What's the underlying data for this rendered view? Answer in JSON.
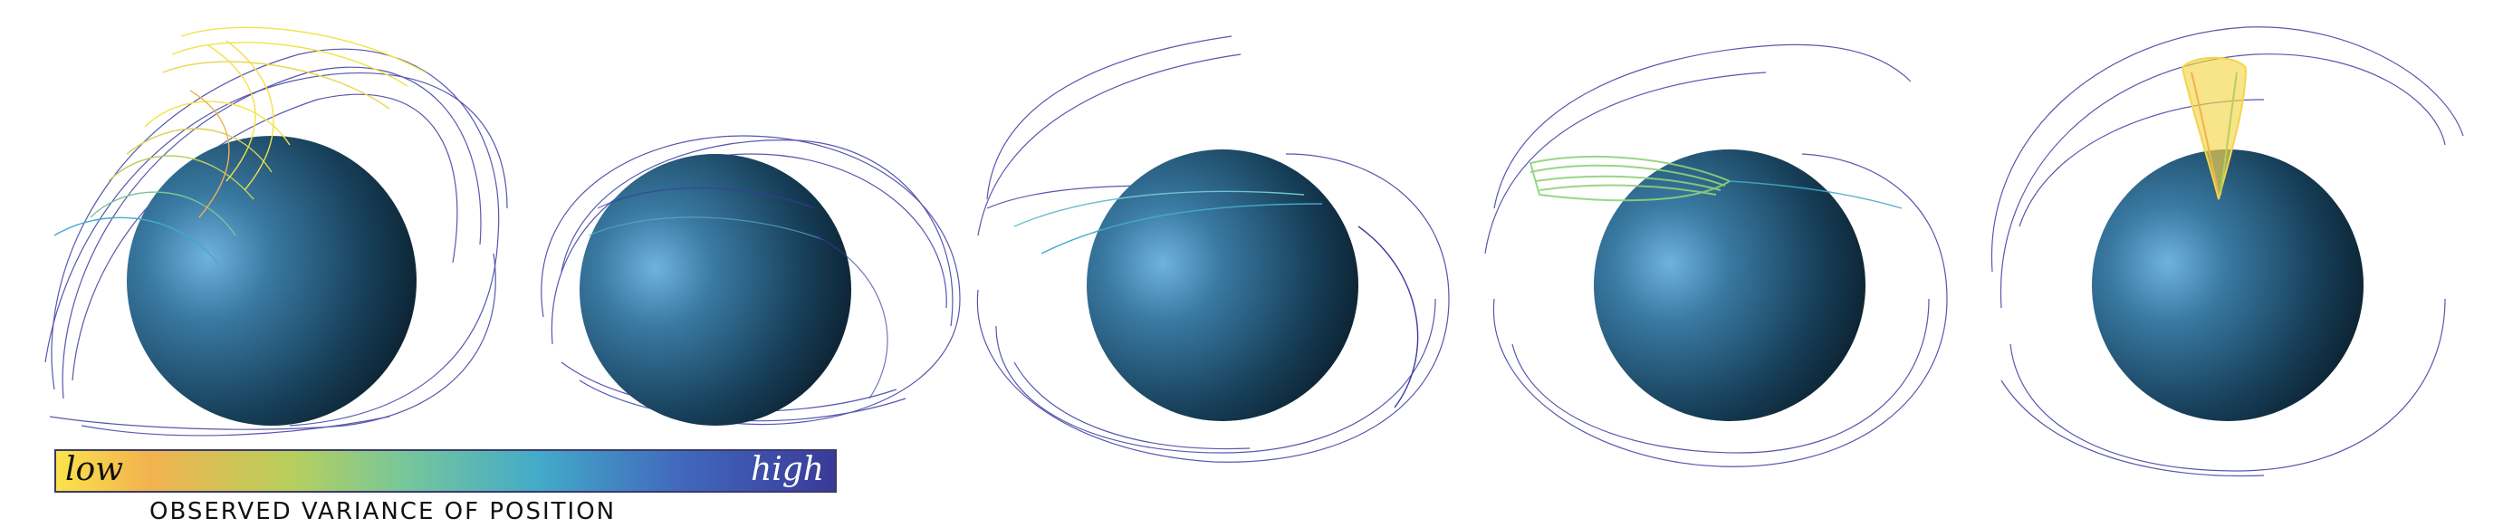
{
  "legend": {
    "low_label": "low",
    "high_label": "high",
    "caption": "OBSERVED VARIANCE OF POSITION",
    "colors": [
      "#fbe34a",
      "#f2b24e",
      "#b8cf5c",
      "#76c69b",
      "#43aac9",
      "#4169bd",
      "#3a3a98"
    ]
  },
  "panels": [
    {
      "id": "panel-1",
      "highlight_color": "#f2e34a"
    },
    {
      "id": "panel-2",
      "highlight_color": "#5bb3c9"
    },
    {
      "id": "panel-3",
      "highlight_color": "#6fc2d0"
    },
    {
      "id": "panel-4",
      "highlight_color": "#8fd17a"
    },
    {
      "id": "panel-5",
      "highlight_color": "#f4d54a"
    }
  ],
  "colors": {
    "sphere_light": "#4f8fb8",
    "sphere_mid": "#1f4f6f",
    "sphere_dark": "#0b1f2c",
    "streamline": "#3b3aa0"
  }
}
